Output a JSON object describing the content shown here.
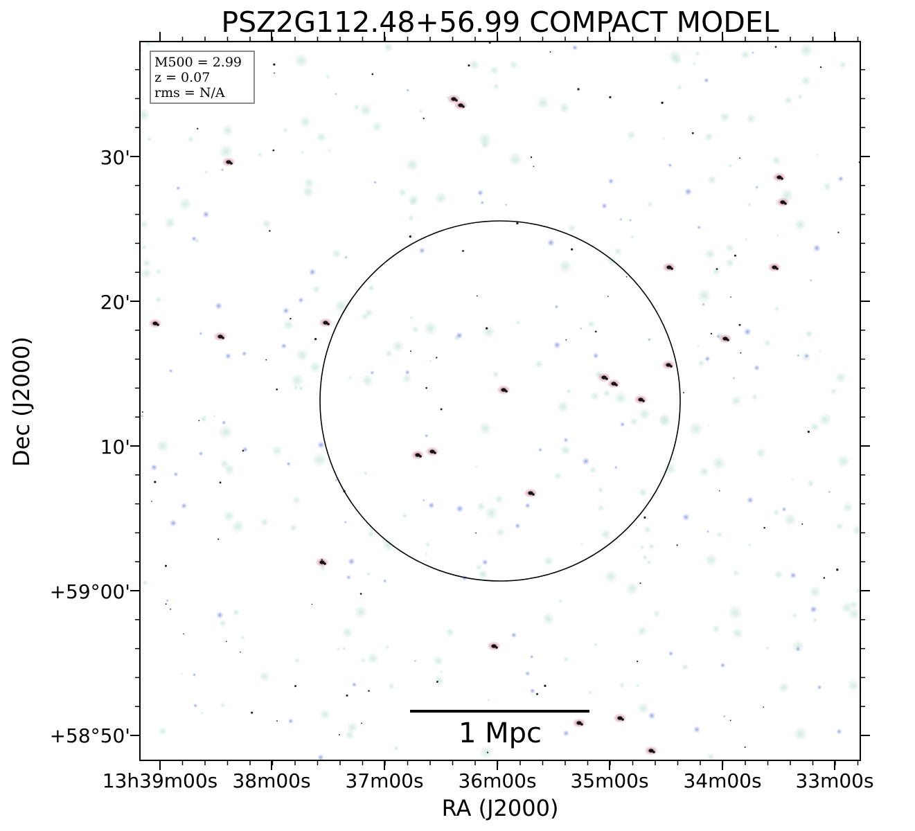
{
  "chart_data": {
    "type": "image",
    "title": "PSZ2G112.48+56.99 COMPACT MODEL",
    "xlabel": "RA (J2000)",
    "ylabel": "Dec (J2000)",
    "x_ticks": [
      "13h39m00s",
      "38m00s",
      "37m00s",
      "36m00s",
      "35m00s",
      "34m00s",
      "33m00s"
    ],
    "y_ticks": [
      "+58°50'",
      "+59°00'",
      "10'",
      "20'",
      "30'"
    ],
    "info_box": {
      "line1": "M500 = 2.99",
      "line2": "z = 0.07",
      "line3": "rms = N/A"
    },
    "scale_bar_label": "1 Mpc",
    "colors": {
      "frame": "#000000",
      "faint_blob": "#cfe9e0",
      "blue_blob": "#8a9be0",
      "source_core": "#111111",
      "source_pink": "#c06a8a"
    }
  }
}
